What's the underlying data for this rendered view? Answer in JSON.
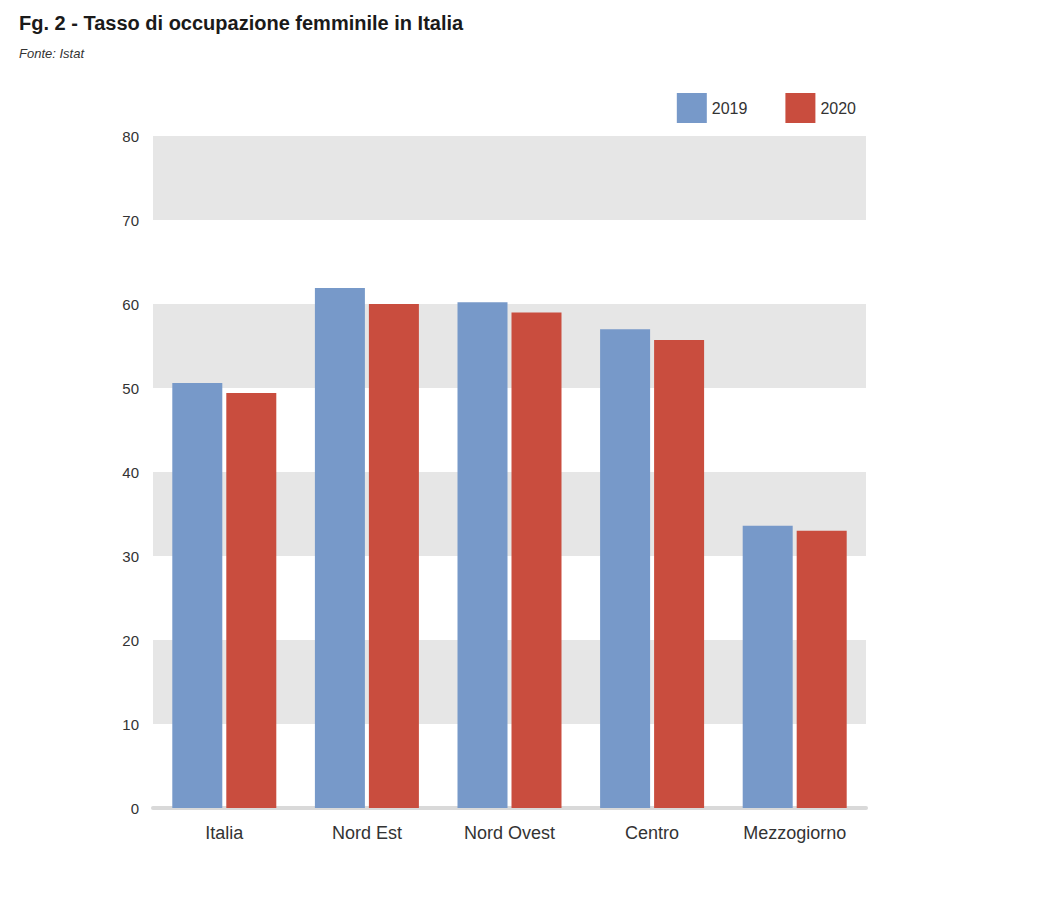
{
  "chart_data": {
    "type": "bar",
    "title": "Fg. 2 - Tasso di occupazione femminile in Italia",
    "subtitle": "Fonte: Istat",
    "categories": [
      "Italia",
      "Nord Est",
      "Nord Ovest",
      "Centro",
      "Mezzogiorno"
    ],
    "series": [
      {
        "name": "2019",
        "color": "#7799c9",
        "values": [
          50.6,
          61.9,
          60.2,
          57.0,
          33.6
        ]
      },
      {
        "name": "2020",
        "color": "#c94d3e",
        "values": [
          49.4,
          60.0,
          59.0,
          55.7,
          33.0
        ]
      }
    ],
    "ylim": [
      0,
      80
    ],
    "yticks": [
      0,
      10,
      20,
      30,
      40,
      50,
      60,
      70,
      80
    ],
    "grid": true,
    "legend": "upper right"
  }
}
